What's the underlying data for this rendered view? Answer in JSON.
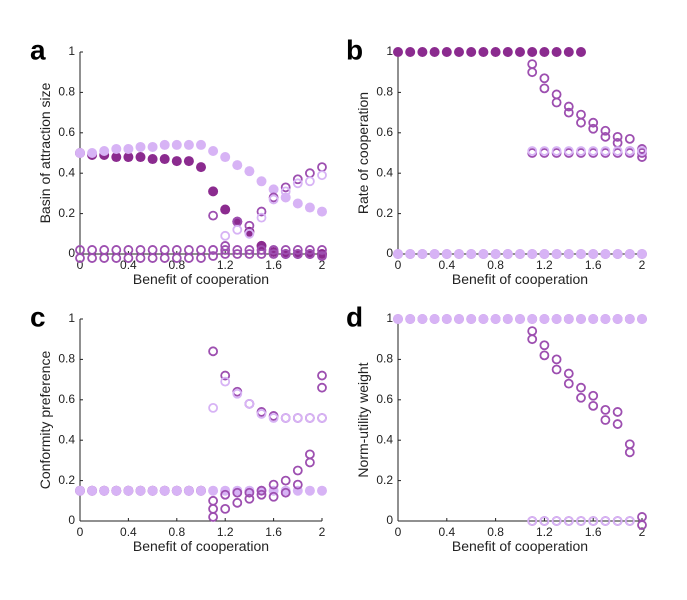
{
  "colors": {
    "dark": "#8b2b8f",
    "mid": "#9d4fb0",
    "light": "#d7b3f5"
  },
  "chart_data": [
    {
      "type": "scatter",
      "panel_label": "a",
      "xlabel": "Benefit of cooperation",
      "ylabel": "Basin of attraction size",
      "xlim": [
        0,
        2
      ],
      "ylim": [
        0,
        1
      ],
      "xticks": [
        "0",
        "0.4",
        "0.8",
        "1.2",
        "1.6",
        "2"
      ],
      "yticks": [
        "0",
        "0.2",
        "0.4",
        "0.6",
        "0.8",
        "1"
      ],
      "series": [
        {
          "name": "dark filled",
          "style": "filled",
          "color": "dark",
          "x": [
            0,
            0.1,
            0.2,
            0.3,
            0.4,
            0.5,
            0.6,
            0.7,
            0.8,
            0.9,
            1.0,
            1.1,
            1.2,
            1.3,
            1.4,
            1.5,
            1.6,
            1.7,
            1.8,
            1.9,
            2.0
          ],
          "y": [
            0.5,
            0.49,
            0.49,
            0.48,
            0.48,
            0.48,
            0.47,
            0.47,
            0.46,
            0.46,
            0.43,
            0.31,
            0.22,
            0.16,
            0.11,
            0.04,
            0.01,
            0,
            0,
            0,
            0
          ]
        },
        {
          "name": "light filled",
          "style": "filled",
          "color": "light",
          "x": [
            0,
            0.1,
            0.2,
            0.3,
            0.4,
            0.5,
            0.6,
            0.7,
            0.8,
            0.9,
            1.0,
            1.1,
            1.2,
            1.3,
            1.4,
            1.5,
            1.6,
            1.7,
            1.8,
            1.9,
            2.0
          ],
          "y": [
            0.5,
            0.5,
            0.51,
            0.52,
            0.52,
            0.53,
            0.53,
            0.54,
            0.54,
            0.54,
            0.54,
            0.51,
            0.48,
            0.44,
            0.41,
            0.36,
            0.32,
            0.28,
            0.25,
            0.23,
            0.21
          ]
        },
        {
          "name": "dark open",
          "style": "open",
          "color": "mid",
          "x": [
            1.1,
            1.2,
            1.3,
            1.4,
            1.5,
            1.6,
            1.7,
            1.8,
            1.9,
            2.0
          ],
          "y": [
            0.19,
            0.04,
            0.16,
            0.14,
            0.21,
            0.28,
            0.33,
            0.37,
            0.4,
            0.43
          ]
        },
        {
          "name": "light open",
          "style": "open",
          "color": "light",
          "x": [
            1.1,
            1.2,
            1.3,
            1.4,
            1.5,
            1.6,
            1.7,
            1.8,
            1.9,
            2.0
          ],
          "y": [
            0.02,
            0.09,
            0.12,
            0.1,
            0.18,
            0.27,
            0.31,
            0.35,
            0.36,
            0.39
          ]
        },
        {
          "name": "dark open near zero",
          "style": "open",
          "color": "mid",
          "x": [
            0,
            0.1,
            0.2,
            0.3,
            0.4,
            0.5,
            0.6,
            0.7,
            0.8,
            0.9,
            1.0,
            1.1,
            1.2,
            1.3,
            1.4,
            1.5,
            1.6,
            1.7,
            1.8,
            1.9,
            2.0
          ],
          "y": [
            0.02,
            0.02,
            0.02,
            0.02,
            0.02,
            0.02,
            0.02,
            0.02,
            0.02,
            0.02,
            0.02,
            0.02,
            0.02,
            0.02,
            0.02,
            0.02,
            0.02,
            0.02,
            0.02,
            0.02,
            0.02
          ]
        },
        {
          "name": "dark open zero",
          "style": "open",
          "color": "mid",
          "x": [
            0,
            0.1,
            0.2,
            0.3,
            0.4,
            0.5,
            0.6,
            0.7,
            0.8,
            0.9,
            1.0,
            1.1,
            1.2,
            1.3,
            1.4,
            1.5,
            1.6,
            1.7,
            1.8,
            1.9,
            2.0
          ],
          "y": [
            -0.02,
            -0.02,
            -0.02,
            -0.02,
            -0.02,
            -0.02,
            -0.02,
            -0.02,
            -0.02,
            -0.02,
            -0.02,
            -0.01,
            0,
            0,
            0,
            0,
            0,
            0,
            0,
            0,
            -0.01
          ]
        }
      ]
    },
    {
      "type": "scatter",
      "panel_label": "b",
      "xlabel": "Benefit of cooperation",
      "ylabel": "Rate of cooperation",
      "xlim": [
        0,
        2
      ],
      "ylim": [
        0,
        1
      ],
      "xticks": [
        "0",
        "0.4",
        "0.8",
        "1.2",
        "1.6",
        "2"
      ],
      "yticks": [
        "0",
        "0.2",
        "0.4",
        "0.6",
        "0.8",
        "1"
      ],
      "series": [
        {
          "name": "dark filled",
          "style": "filled",
          "color": "dark",
          "x": [
            0,
            0.1,
            0.2,
            0.3,
            0.4,
            0.5,
            0.6,
            0.7,
            0.8,
            0.9,
            1.0,
            1.1,
            1.2,
            1.3,
            1.4,
            1.5
          ],
          "y": [
            1,
            1,
            1,
            1,
            1,
            1,
            1,
            1,
            1,
            1,
            1,
            1,
            1,
            1,
            1,
            1
          ]
        },
        {
          "name": "dark open descending",
          "style": "open",
          "color": "mid",
          "x": [
            1.1,
            1.1,
            1.2,
            1.2,
            1.3,
            1.3,
            1.4,
            1.4,
            1.5,
            1.5,
            1.6,
            1.6,
            1.7,
            1.7,
            1.8,
            1.8,
            1.9,
            1.9,
            2.0,
            2.0
          ],
          "y": [
            0.94,
            0.9,
            0.87,
            0.82,
            0.79,
            0.75,
            0.73,
            0.7,
            0.69,
            0.65,
            0.65,
            0.62,
            0.61,
            0.58,
            0.58,
            0.55,
            0.57,
            0.51,
            0.52,
            0.48
          ]
        },
        {
          "name": "dark open half",
          "style": "open",
          "color": "mid",
          "x": [
            1.1,
            1.2,
            1.3,
            1.4,
            1.5,
            1.6,
            1.7,
            1.8,
            1.9,
            2.0
          ],
          "y": [
            0.5,
            0.5,
            0.5,
            0.5,
            0.5,
            0.5,
            0.5,
            0.5,
            0.5,
            0.5
          ]
        },
        {
          "name": "light open half",
          "style": "open",
          "color": "light",
          "x": [
            1.1,
            1.2,
            1.3,
            1.4,
            1.5,
            1.6,
            1.7,
            1.8,
            1.9,
            2.0
          ],
          "y": [
            0.51,
            0.51,
            0.51,
            0.51,
            0.51,
            0.51,
            0.51,
            0.51,
            0.51,
            0.51
          ]
        },
        {
          "name": "dark open zero",
          "style": "open",
          "color": "mid",
          "x": [
            0,
            0.1,
            0.2,
            0.3,
            0.4,
            0.5,
            0.6,
            0.7,
            0.8,
            0.9,
            1.0,
            1.1,
            1.2,
            1.3,
            1.4,
            1.5,
            1.6,
            1.7,
            1.8,
            1.9,
            2.0
          ],
          "y": [
            0,
            0,
            0,
            0,
            0,
            0,
            0,
            0,
            0,
            0,
            0,
            0,
            0,
            0,
            0,
            0,
            0,
            0,
            0,
            0,
            0
          ]
        },
        {
          "name": "light filled zero",
          "style": "filled",
          "color": "light",
          "x": [
            0,
            0.1,
            0.2,
            0.3,
            0.4,
            0.5,
            0.6,
            0.7,
            0.8,
            0.9,
            1.0,
            1.1,
            1.2,
            1.3,
            1.4,
            1.5,
            1.6,
            1.7,
            1.8,
            1.9,
            2.0
          ],
          "y": [
            0,
            0,
            0,
            0,
            0,
            0,
            0,
            0,
            0,
            0,
            0,
            0,
            0,
            0,
            0,
            0,
            0,
            0,
            0,
            0,
            0
          ]
        }
      ]
    },
    {
      "type": "scatter",
      "panel_label": "c",
      "xlabel": "Benefit of cooperation",
      "ylabel": "Conformity preference",
      "xlim": [
        0,
        2
      ],
      "ylim": [
        0,
        1
      ],
      "xticks": [
        "0",
        "0.4",
        "0.8",
        "1.2",
        "1.6",
        "2"
      ],
      "yticks": [
        "0",
        "0.2",
        "0.4",
        "0.6",
        "0.8",
        "1"
      ],
      "series": [
        {
          "name": "dark filled",
          "style": "filled",
          "color": "dark",
          "x": [
            0,
            0.1,
            0.2,
            0.3,
            0.4,
            0.5,
            0.6,
            0.7,
            0.8,
            0.9,
            1.0
          ],
          "y": [
            0.15,
            0.15,
            0.15,
            0.15,
            0.15,
            0.15,
            0.15,
            0.15,
            0.15,
            0.15,
            0.15
          ]
        },
        {
          "name": "light filled",
          "style": "filled",
          "color": "light",
          "x": [
            0,
            0.1,
            0.2,
            0.3,
            0.4,
            0.5,
            0.6,
            0.7,
            0.8,
            0.9,
            1.0,
            1.1,
            1.2,
            1.3,
            1.4,
            1.5,
            1.6,
            1.7,
            1.8,
            1.9,
            2.0
          ],
          "y": [
            0.15,
            0.15,
            0.15,
            0.15,
            0.15,
            0.15,
            0.15,
            0.15,
            0.15,
            0.15,
            0.15,
            0.15,
            0.15,
            0.15,
            0.15,
            0.15,
            0.15,
            0.15,
            0.15,
            0.15,
            0.15
          ]
        },
        {
          "name": "dark open upper",
          "style": "open",
          "color": "mid",
          "x": [
            1.1,
            1.2,
            1.3,
            1.4,
            1.5,
            1.6,
            1.7,
            1.8,
            1.9,
            2.0
          ],
          "y": [
            0.84,
            0.72,
            0.64,
            0.58,
            0.54,
            0.52,
            0.51,
            0.51,
            0.51,
            0.51
          ]
        },
        {
          "name": "light open upper",
          "style": "open",
          "color": "light",
          "x": [
            1.1,
            1.2,
            1.3,
            1.4,
            1.5,
            1.6,
            1.7,
            1.8,
            1.9,
            2.0
          ],
          "y": [
            0.56,
            0.69,
            0.63,
            0.58,
            0.53,
            0.51,
            0.51,
            0.51,
            0.51,
            0.51
          ]
        },
        {
          "name": "dark open lower",
          "style": "open",
          "color": "mid",
          "x": [
            1.1,
            1.1,
            1.1,
            1.2,
            1.2,
            1.3,
            1.3,
            1.4,
            1.4,
            1.5,
            1.5,
            1.6,
            1.6,
            1.7,
            1.7,
            1.8,
            1.8,
            1.9,
            1.9,
            2.0,
            2.0
          ],
          "y": [
            0.1,
            0.06,
            0.02,
            0.13,
            0.06,
            0.14,
            0.09,
            0.14,
            0.11,
            0.15,
            0.13,
            0.18,
            0.12,
            0.2,
            0.14,
            0.25,
            0.18,
            0.33,
            0.29,
            0.72,
            0.66
          ]
        }
      ]
    },
    {
      "type": "scatter",
      "panel_label": "d",
      "xlabel": "Benefit of cooperation",
      "ylabel": "Norm-utility weight",
      "xlim": [
        0,
        2
      ],
      "ylim": [
        0,
        1
      ],
      "xticks": [
        "0",
        "0.4",
        "0.8",
        "1.2",
        "1.6",
        "2"
      ],
      "yticks": [
        "0",
        "0.2",
        "0.4",
        "0.6",
        "0.8",
        "1"
      ],
      "series": [
        {
          "name": "dark open one",
          "style": "open",
          "color": "mid",
          "x": [
            0,
            0.1,
            0.2,
            0.3,
            0.4,
            0.5,
            0.6,
            0.7,
            0.8,
            0.9,
            1.0,
            1.1,
            1.2,
            1.3,
            1.4,
            1.5,
            1.6,
            1.7,
            1.8,
            1.9,
            2.0
          ],
          "y": [
            1,
            1,
            1,
            1,
            1,
            1,
            1,
            1,
            1,
            1,
            1,
            1,
            1,
            1,
            1,
            1,
            1,
            1,
            1,
            1,
            1
          ]
        },
        {
          "name": "light filled one",
          "style": "filled",
          "color": "light",
          "x": [
            0,
            0.1,
            0.2,
            0.3,
            0.4,
            0.5,
            0.6,
            0.7,
            0.8,
            0.9,
            1.0,
            1.1,
            1.2,
            1.3,
            1.4,
            1.5,
            1.6,
            1.7,
            1.8,
            1.9,
            2.0
          ],
          "y": [
            1,
            1,
            1,
            1,
            1,
            1,
            1,
            1,
            1,
            1,
            1,
            1,
            1,
            1,
            1,
            1,
            1,
            1,
            1,
            1,
            1
          ]
        },
        {
          "name": "dark open descending",
          "style": "open",
          "color": "mid",
          "x": [
            1.1,
            1.1,
            1.2,
            1.2,
            1.3,
            1.3,
            1.4,
            1.4,
            1.5,
            1.5,
            1.6,
            1.6,
            1.7,
            1.7,
            1.8,
            1.8,
            1.9,
            1.9,
            2.0,
            2.0
          ],
          "y": [
            0.94,
            0.9,
            0.87,
            0.82,
            0.8,
            0.75,
            0.73,
            0.68,
            0.66,
            0.61,
            0.62,
            0.57,
            0.55,
            0.5,
            0.54,
            0.48,
            0.38,
            0.34,
            0.02,
            -0.02
          ]
        },
        {
          "name": "dark open zero",
          "style": "open",
          "color": "mid",
          "x": [
            1.1,
            1.2,
            1.3,
            1.4,
            1.5,
            1.6,
            1.7,
            1.8,
            1.9
          ],
          "y": [
            0,
            0,
            0,
            0,
            0,
            0,
            0,
            0,
            0
          ]
        },
        {
          "name": "light open zero",
          "style": "open",
          "color": "light",
          "x": [
            1.1,
            1.2,
            1.3,
            1.4,
            1.5,
            1.6,
            1.7,
            1.8,
            1.9
          ],
          "y": [
            0,
            0,
            0,
            0,
            0,
            0,
            0,
            0,
            0
          ]
        }
      ]
    }
  ]
}
